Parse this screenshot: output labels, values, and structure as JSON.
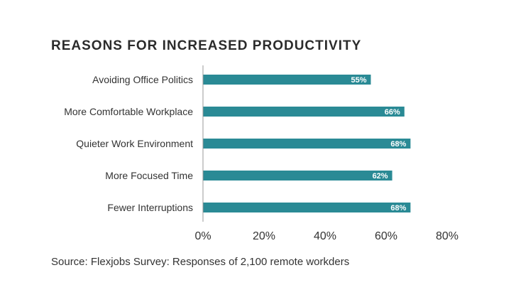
{
  "chart_data": {
    "type": "bar",
    "orientation": "horizontal",
    "title": "REASONS FOR INCREASED PRODUCTIVITY",
    "categories": [
      "Avoiding Office Politics",
      "More Comfortable Workplace",
      "Quieter Work Environment",
      "More Focused Time",
      "Fewer Interruptions"
    ],
    "values": [
      55,
      66,
      68,
      62,
      68
    ],
    "value_labels": [
      "55%",
      "66%",
      "68%",
      "62%",
      "68%"
    ],
    "xlim": [
      0,
      80
    ],
    "x_ticks": [
      0,
      20,
      40,
      60,
      80
    ],
    "x_tick_labels": [
      "0%",
      "20%",
      "40%",
      "60%",
      "80%"
    ],
    "grid": false,
    "bar_color": "#2a8a95"
  },
  "source": "Source: Flexjobs Survey: Responses of 2,100 remote workders"
}
